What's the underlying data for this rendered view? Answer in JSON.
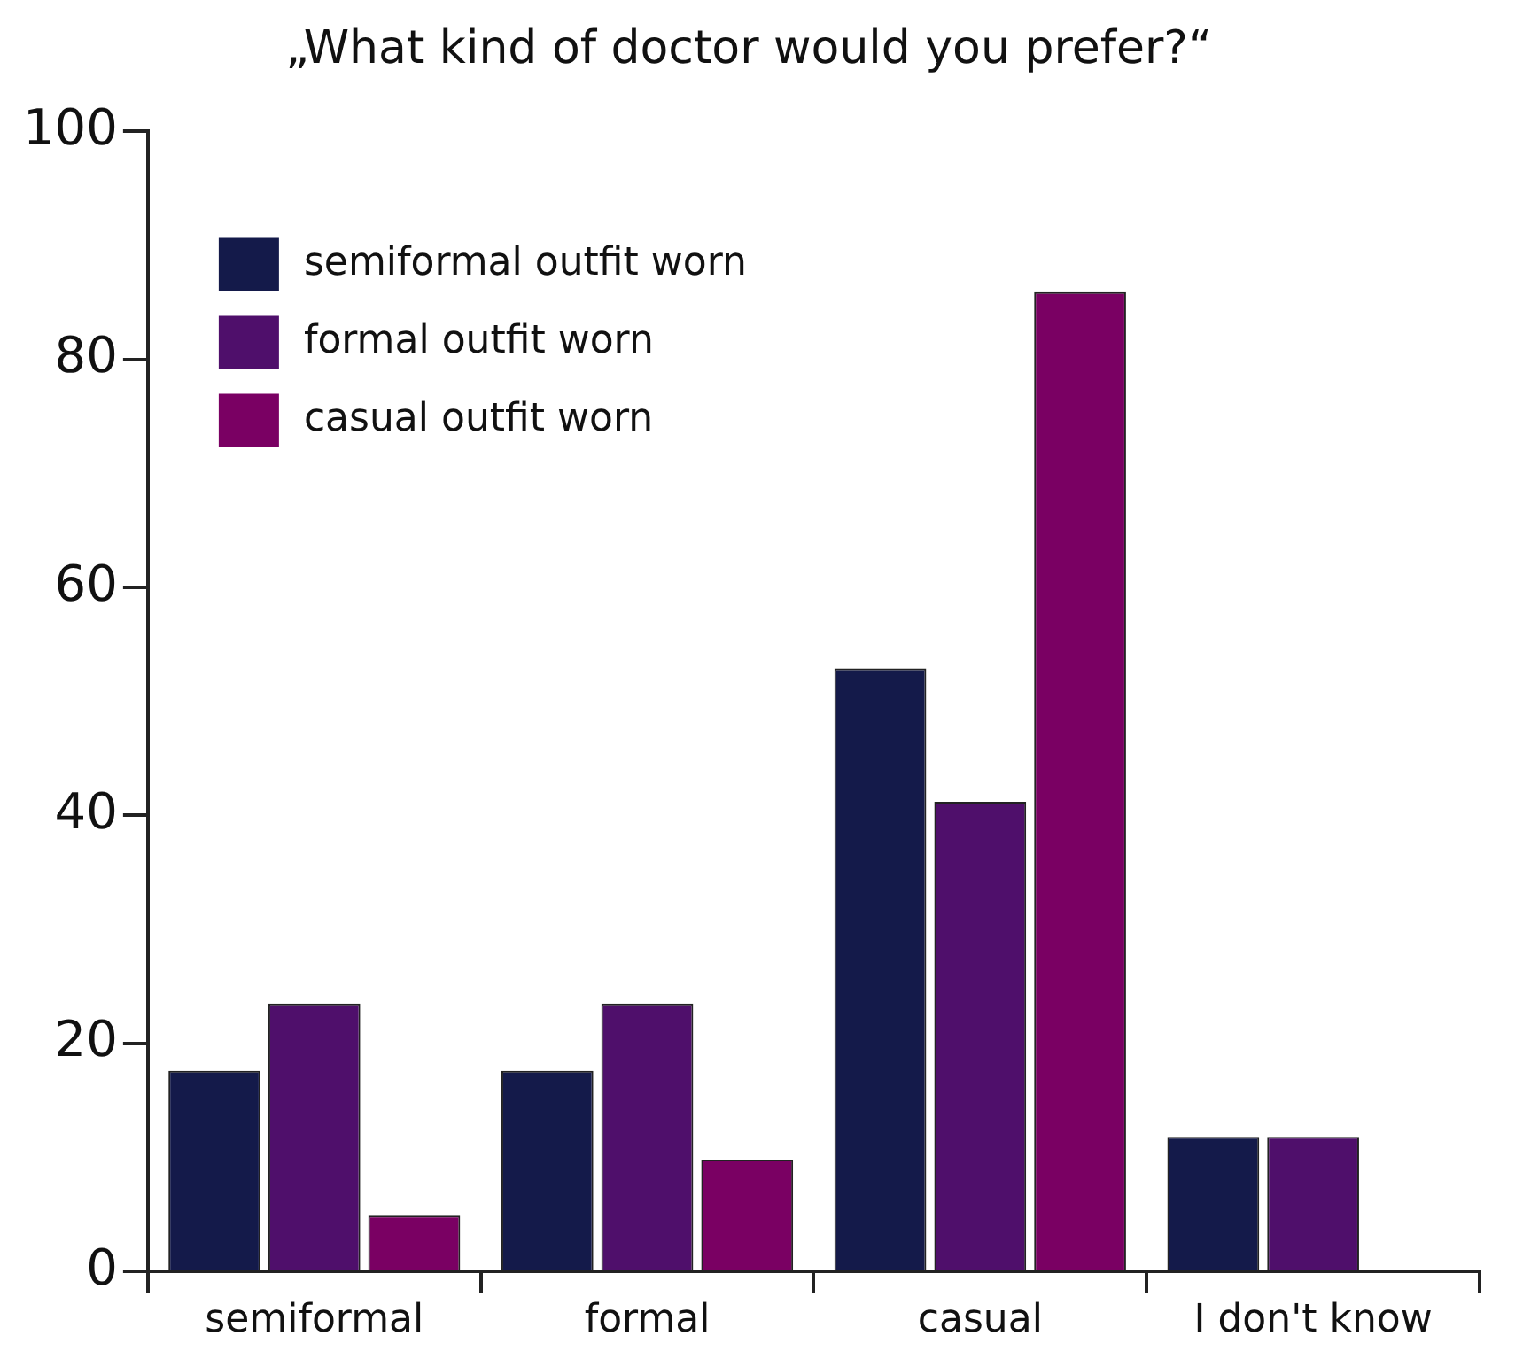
{
  "chart_data": {
    "type": "bar",
    "title": "„What kind of doctor would you prefer?“",
    "categories": [
      "semiformal",
      "formal",
      "casual",
      "I don't know"
    ],
    "series": [
      {
        "name": "semiformal outfit worn",
        "color": "#141a4a",
        "values": [
          17.6,
          17.6,
          52.9,
          11.8
        ]
      },
      {
        "name": "formal outfit worn",
        "color": "#4f0f6b",
        "values": [
          23.5,
          23.5,
          41.2,
          11.8
        ]
      },
      {
        "name": "casual outfit worn",
        "color": "#7a0063",
        "values": [
          4.9,
          9.8,
          85.9,
          0
        ]
      }
    ],
    "ylim": [
      0,
      100
    ],
    "yticks": [
      0,
      20,
      40,
      60,
      80,
      100
    ],
    "grid": false,
    "legend": "top left"
  }
}
